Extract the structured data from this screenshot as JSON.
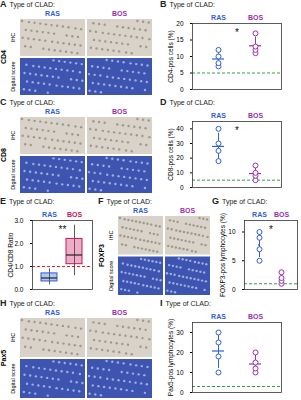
{
  "chart_data": [
    {
      "panel": "B",
      "type": "scatter",
      "title": "Type of CLAD:",
      "y_label": "CD4-pos cells (%)",
      "ylim": [
        0,
        20
      ],
      "yticks": [
        0,
        5,
        10,
        15,
        20
      ],
      "tick_labels": "y",
      "series": [
        {
          "name": "RAS",
          "color": "#2f5fd0",
          "values": [
            7,
            8,
            10,
            12
          ],
          "mean": 9.25,
          "sd": 2.2
        },
        {
          "name": "BOS",
          "color": "#9b2fae",
          "values": [
            11,
            12,
            13,
            17
          ],
          "mean": 13.25,
          "sd": 2.6
        }
      ],
      "reference_line": {
        "value": 5,
        "color": "#2ea043"
      },
      "significance": "*"
    },
    {
      "panel": "D",
      "type": "scatter",
      "title": "Type of CLAD:",
      "y_label": "CD8-pos cells (%)",
      "ylim": [
        0,
        45
      ],
      "yticks": [
        0,
        10,
        20,
        30,
        40
      ],
      "tick_labels": "y",
      "series": [
        {
          "name": "RAS",
          "color": "#2f5fd0",
          "values": [
            18,
            25,
            30,
            40
          ],
          "mean": 28,
          "sd": 9
        },
        {
          "name": "BOS",
          "color": "#9b2fae",
          "values": [
            5,
            8,
            10,
            15
          ],
          "mean": 9.5,
          "sd": 4
        }
      ],
      "reference_line": {
        "value": 5,
        "color": "#2ea043"
      },
      "significance": "*"
    },
    {
      "panel": "E",
      "type": "box",
      "title": "Type of CLAD:",
      "y_label": "CD4/CD8 Ratio",
      "ylim": [
        0,
        3
      ],
      "yticks": [
        0,
        1,
        2,
        3
      ],
      "tick_labels": "y",
      "series": [
        {
          "name": "RAS",
          "color": "#2f5fd0",
          "min": 0.2,
          "q1": 0.35,
          "median": 0.5,
          "q3": 0.7,
          "max": 0.9
        },
        {
          "name": "BOS",
          "color": "#c2185b",
          "min": 0.6,
          "q1": 1.1,
          "median": 1.5,
          "q3": 2.2,
          "max": 2.8
        }
      ],
      "reference_line": {
        "value": 1,
        "color": "#d62728"
      },
      "significance": "**"
    },
    {
      "panel": "G",
      "type": "scatter",
      "title": "Type of CLAD:",
      "y_label": "FOXP3-pos lymphocytes (%)",
      "ylim": [
        0,
        12
      ],
      "yticks": [
        0,
        5,
        10
      ],
      "tick_labels": "y",
      "series": [
        {
          "name": "RAS",
          "color": "#2f5fd0",
          "values": [
            5,
            7,
            9,
            10
          ],
          "mean": 7.75,
          "sd": 2.2
        },
        {
          "name": "BOS",
          "color": "#9b2fae",
          "values": [
            1,
            1.5,
            2,
            3
          ],
          "mean": 1.9,
          "sd": 0.8
        }
      ],
      "reference_line": {
        "value": 1,
        "color": "#2ea043"
      },
      "significance": "*"
    },
    {
      "panel": "I",
      "type": "scatter",
      "title": "Type of CLAD:",
      "y_label": "Pax5-pos lymphocytes (%)",
      "ylim": [
        0,
        35
      ],
      "yticks": [
        0,
        10,
        20,
        30
      ],
      "tick_labels": "y",
      "series": [
        {
          "name": "RAS",
          "color": "#2f5fd0",
          "values": [
            10,
            18,
            25,
            30
          ],
          "mean": 20.75,
          "sd": 8.7
        },
        {
          "name": "BOS",
          "color": "#9b2fae",
          "values": [
            10,
            12,
            15,
            20
          ],
          "mean": 14.25,
          "sd": 4.3
        }
      ],
      "reference_line": {
        "value": 3,
        "color": "#2ea043"
      }
    }
  ],
  "image_panels": [
    {
      "panel": "A",
      "title": "Type of CLAD:",
      "columns": [
        "RAS",
        "BOS"
      ],
      "colors": [
        "#2f5fd0",
        "#9b2fae"
      ],
      "rows": [
        "IHC",
        "Digital score"
      ],
      "marker": "CD4"
    },
    {
      "panel": "C",
      "title": "Type of CLAD:",
      "columns": [
        "RAS",
        "BOS"
      ],
      "colors": [
        "#2f5fd0",
        "#9b2fae"
      ],
      "rows": [
        "IHC",
        "Digital score"
      ],
      "marker": "CD8"
    },
    {
      "panel": "F",
      "title": "Type of CLAD:",
      "columns": [
        "RAS",
        "BOS"
      ],
      "colors": [
        "#2f5fd0",
        "#9b2fae"
      ],
      "rows": [
        "IHC",
        "Digital score"
      ],
      "marker": "FOXP3"
    },
    {
      "panel": "H",
      "title": "Type of CLAD:",
      "columns": [
        "RAS",
        "BOS"
      ],
      "colors": [
        "#2f5fd0",
        "#9b2fae"
      ],
      "rows": [
        "IHC",
        "Digital score"
      ],
      "marker": "Pax5"
    }
  ]
}
